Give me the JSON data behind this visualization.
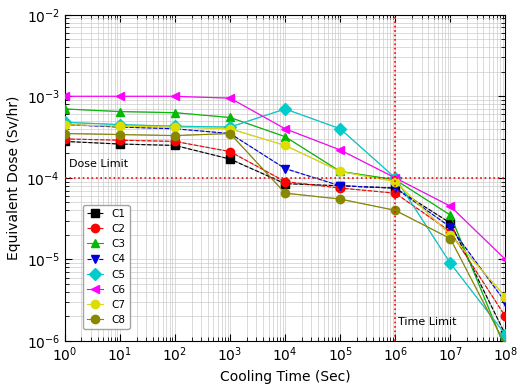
{
  "x": [
    1,
    10,
    100,
    1000,
    10000,
    100000,
    1000000,
    10000000,
    100000000
  ],
  "series": {
    "C1": {
      "color": "#000000",
      "marker": "s",
      "linestyle": "--",
      "y": [
        0.00028,
        0.00026,
        0.00025,
        0.00017,
        8.5e-05,
        8e-05,
        7.5e-05,
        2.8e-05,
        1.2e-06
      ]
    },
    "C2": {
      "color": "#ff0000",
      "marker": "o",
      "linestyle": "--",
      "y": [
        0.0003,
        0.00029,
        0.00028,
        0.00021,
        9e-05,
        7.5e-05,
        6.5e-05,
        2.2e-05,
        2e-06
      ]
    },
    "C3": {
      "color": "#00bb00",
      "marker": "^",
      "linestyle": "-",
      "y": [
        0.0007,
        0.00065,
        0.00063,
        0.00055,
        0.00032,
        0.00012,
        9.5e-05,
        3.5e-05,
        8e-07
      ]
    },
    "C4": {
      "color": "#0000dd",
      "marker": "v",
      "linestyle": "--",
      "y": [
        0.00045,
        0.00042,
        0.0004,
        0.00035,
        0.00013,
        8e-05,
        7.5e-05,
        2.5e-05,
        3e-06
      ]
    },
    "C5": {
      "color": "#00cccc",
      "marker": "D",
      "linestyle": "-",
      "y": [
        0.00048,
        0.00045,
        0.00043,
        0.00042,
        0.0007,
        0.0004,
        0.0001,
        9e-06,
        1.2e-06
      ]
    },
    "C6": {
      "color": "#ff00ff",
      "marker": "<",
      "linestyle": "-",
      "y": [
        0.001,
        0.001,
        0.001,
        0.00095,
        0.0004,
        0.00022,
        0.0001,
        4.5e-05,
        1e-05
      ]
    },
    "C7": {
      "color": "#dddd00",
      "marker": "o",
      "linestyle": "-",
      "y": [
        0.00045,
        0.00043,
        0.00042,
        0.0004,
        0.00025,
        0.00012,
        9e-05,
        2e-05,
        3.5e-06
      ]
    },
    "C8": {
      "color": "#888800",
      "marker": "o",
      "linestyle": "-",
      "y": [
        0.00035,
        0.00034,
        0.00033,
        0.00035,
        6.5e-05,
        5.5e-05,
        4e-05,
        1.8e-05,
        9e-07
      ]
    }
  },
  "dose_limit": 0.0001,
  "time_limit": 1000000.0,
  "xlabel": "Cooling Time (Sec)",
  "ylabel": "Equivalent Dose (Sv/hr)",
  "xlim": [
    1,
    100000000.0
  ],
  "ylim": [
    1e-06,
    0.01
  ],
  "dose_limit_label": "Dose Limit",
  "time_limit_label": "Time Limit",
  "background_color": "#ffffff",
  "grid_color": "#cccccc",
  "line_color_connect": "#aaaaaa"
}
